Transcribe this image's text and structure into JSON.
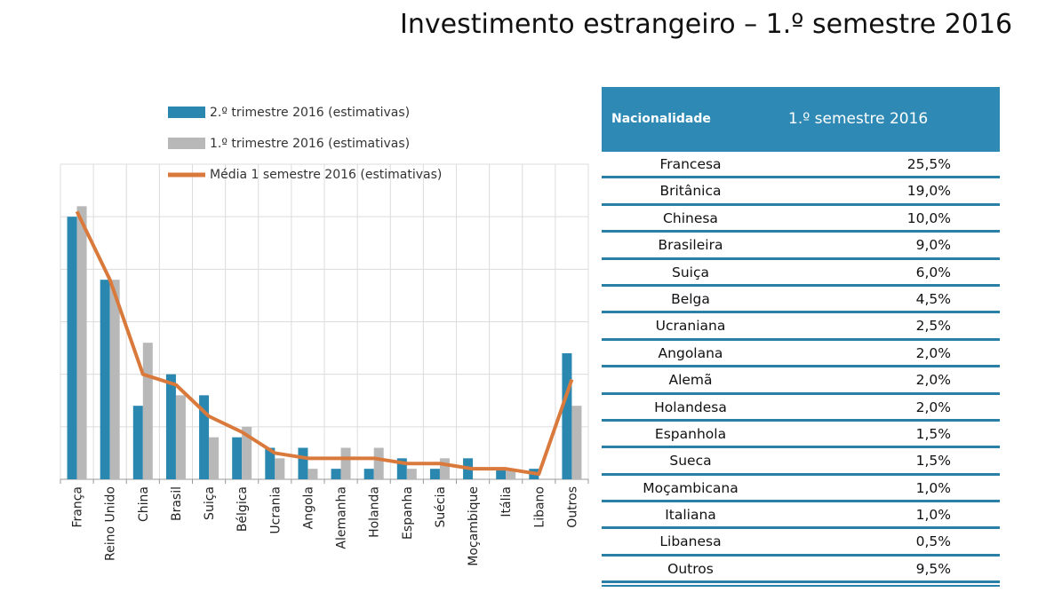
{
  "title": "Investimento estrangeiro – 1.º semestre 2016",
  "colors": {
    "series_q2": "#2a88b0",
    "series_q1": "#b8b8b8",
    "series_avg": "#d97a3c",
    "table_header": "#2e8ab5",
    "table_rule": "#2a7fa6"
  },
  "chart_data": {
    "type": "bar",
    "categories": [
      "França",
      "Reino Unido",
      "China",
      "Brasil",
      "Suiça",
      "Bélgica",
      "Ucrania",
      "Angola",
      "Alemanha",
      "Holanda",
      "Espanha",
      "Suécia",
      "Moçambique",
      "Itália",
      "Libano",
      "Outros"
    ],
    "series": [
      {
        "name": "2.º trimestre 2016 (estimativas)",
        "type": "bar",
        "values": [
          25.0,
          19.0,
          7.0,
          10.0,
          8.0,
          4.0,
          3.0,
          3.0,
          1.0,
          1.0,
          2.0,
          1.0,
          2.0,
          1.0,
          1.0,
          12.0
        ]
      },
      {
        "name": "1.º  trimestre 2016 (estimativas)",
        "type": "bar",
        "values": [
          26.0,
          19.0,
          13.0,
          8.0,
          4.0,
          5.0,
          2.0,
          1.0,
          3.0,
          3.0,
          1.0,
          2.0,
          0.0,
          1.0,
          0.0,
          7.0
        ]
      },
      {
        "name": "Média 1 semestre 2016 (estimativas)",
        "type": "line",
        "values": [
          25.5,
          19.0,
          10.0,
          9.0,
          6.0,
          4.5,
          2.5,
          2.0,
          2.0,
          2.0,
          1.5,
          1.5,
          1.0,
          1.0,
          0.5,
          9.5
        ]
      }
    ],
    "ylim": [
      0,
      30
    ],
    "grid": true,
    "legend": "top"
  },
  "table": {
    "header_nationality": "Nacionalidade",
    "header_semester": "1.º semestre 2016",
    "rows": [
      {
        "nationality": "Francesa",
        "value": "25,5%"
      },
      {
        "nationality": "Britânica",
        "value": "19,0%"
      },
      {
        "nationality": "Chinesa",
        "value": "10,0%"
      },
      {
        "nationality": "Brasileira",
        "value": "9,0%"
      },
      {
        "nationality": "Suiça",
        "value": "6,0%"
      },
      {
        "nationality": "Belga",
        "value": "4,5%"
      },
      {
        "nationality": "Ucraniana",
        "value": "2,5%"
      },
      {
        "nationality": "Angolana",
        "value": "2,0%"
      },
      {
        "nationality": "Alemã",
        "value": "2,0%"
      },
      {
        "nationality": "Holandesa",
        "value": "2,0%"
      },
      {
        "nationality": "Espanhola",
        "value": "1,5%"
      },
      {
        "nationality": "Sueca",
        "value": "1,5%"
      },
      {
        "nationality": "Moçambicana",
        "value": "1,0%"
      },
      {
        "nationality": "Italiana",
        "value": "1,0%"
      },
      {
        "nationality": "Libanesa",
        "value": "0,5%"
      },
      {
        "nationality": "Outros",
        "value": "9,5%"
      }
    ]
  }
}
